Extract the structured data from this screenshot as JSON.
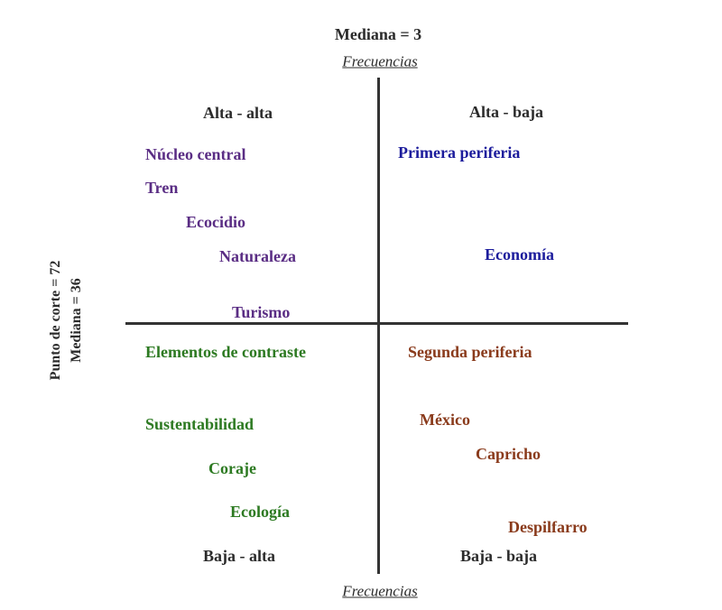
{
  "header": {
    "title": "Mediana = 3",
    "top_axis": "Frecuencias"
  },
  "left_axis": {
    "cut": "Punto de corte = 72",
    "median": "Mediana = 36"
  },
  "quadrants": [
    {
      "label": "Alta - alta",
      "title": "Núcleo central",
      "items": [
        "Tren",
        "Ecocidio",
        "Naturaleza",
        "Turismo"
      ]
    },
    {
      "label": "Alta - baja",
      "title": "Primera periferia",
      "items": [
        "Economía"
      ]
    },
    {
      "label": "Baja - alta",
      "title": "Elementos de contraste",
      "items": [
        "Sustentabilidad",
        "Coraje",
        "Ecología"
      ]
    },
    {
      "label": "Baja - baja",
      "title": "Segunda periferia",
      "items": [
        "México",
        "Capricho",
        "Despilfarro"
      ]
    }
  ],
  "bottom_axis": "Frecuencias"
}
